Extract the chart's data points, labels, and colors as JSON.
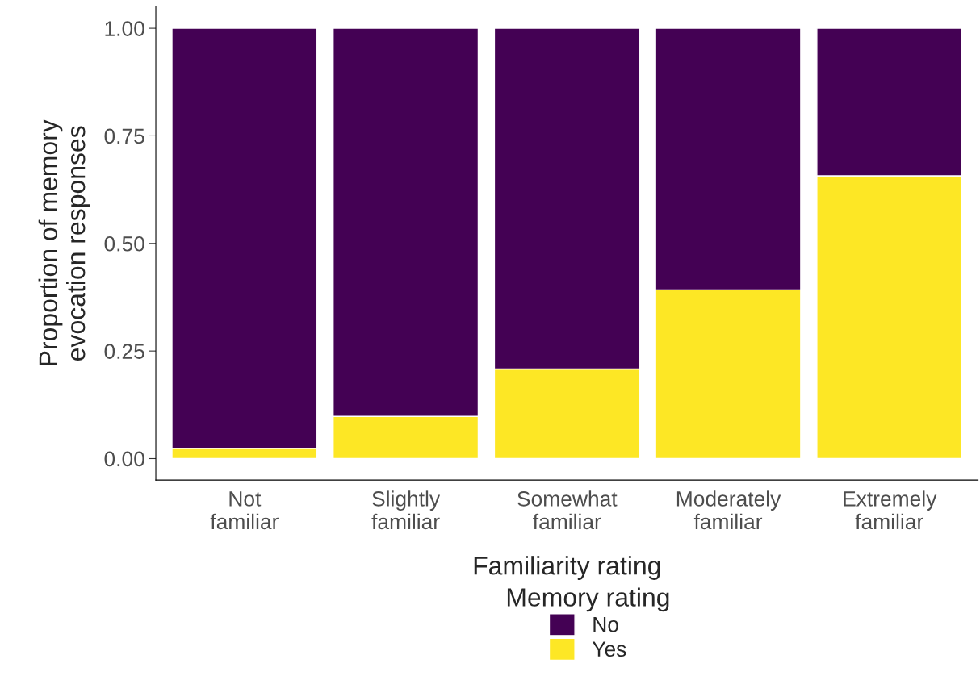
{
  "chart_data": {
    "type": "bar",
    "stacked": true,
    "xlabel": "Familiarity rating",
    "ylabel": "Proportion of memory\nevocation responses",
    "legend_title": "Memory rating",
    "legend": "bottom",
    "grid": false,
    "categories": [
      "Not\nfamiliar",
      "Slightly\nfamiliar",
      "Somewhat\nfamiliar",
      "Moderately\nfamiliar",
      "Extremely\nfamiliar"
    ],
    "series": [
      {
        "name": "Yes",
        "color": "#fde725",
        "values": [
          0.024,
          0.098,
          0.208,
          0.392,
          0.657
        ]
      },
      {
        "name": "No",
        "color": "#440154",
        "values": [
          0.976,
          0.902,
          0.792,
          0.608,
          0.343
        ]
      }
    ],
    "ylim": [
      -0.05,
      1.05
    ],
    "yticks": [
      {
        "value": 0,
        "label": "0.00"
      },
      {
        "value": 0.25,
        "label": "0.25"
      },
      {
        "value": 0.5,
        "label": "0.50"
      },
      {
        "value": 0.75,
        "label": "0.75"
      },
      {
        "value": 1,
        "label": "1.00"
      }
    ]
  }
}
